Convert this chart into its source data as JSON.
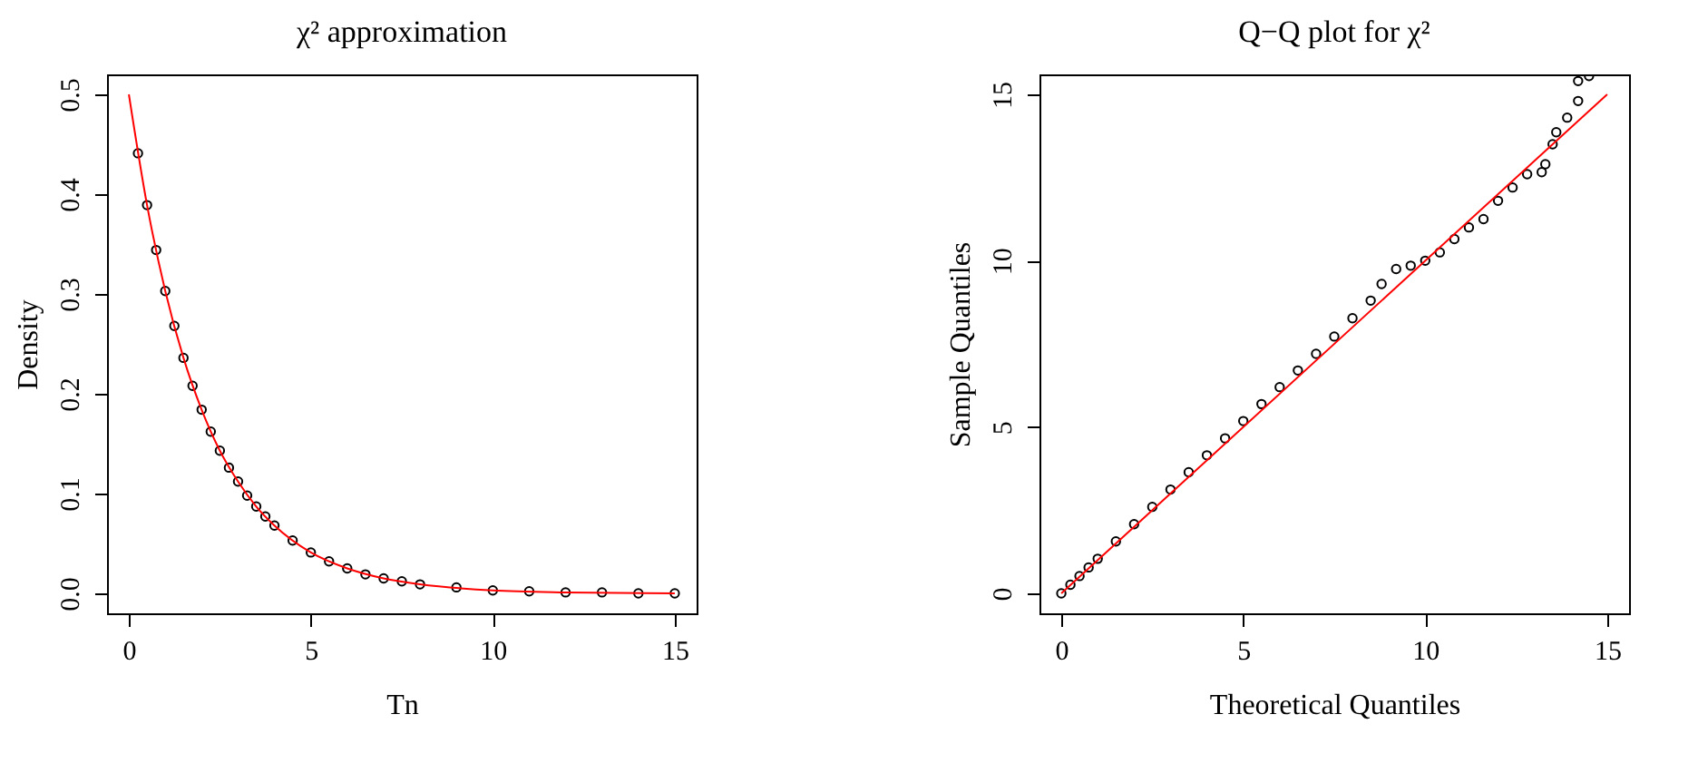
{
  "chart_data": [
    {
      "type": "scatter",
      "title": "χ² approximation",
      "xlabel": "Tn",
      "ylabel": "Density",
      "xlim": [
        -0.6,
        15.6
      ],
      "ylim": [
        -0.02,
        0.52
      ],
      "xticks": [
        0,
        5,
        10,
        15
      ],
      "yticks": [
        {
          "value": 0,
          "label": "0.0"
        },
        0.1,
        0.2,
        0.3,
        0.4,
        0.5
      ],
      "grid": false,
      "series": [
        {
          "marker": "circle",
          "color": "#000000",
          "x": [
            0.25,
            0.5,
            0.75,
            1,
            1.25,
            1.5,
            1.75,
            2,
            2.25,
            2.5,
            2.75,
            3,
            3.25,
            3.5,
            3.75,
            4,
            4.5,
            5,
            5.5,
            6,
            6.5,
            7,
            7.5,
            8,
            9,
            10,
            11,
            12,
            13,
            14,
            15
          ],
          "values": [
            0.441,
            0.389,
            0.344,
            0.303,
            0.268,
            0.236,
            0.208,
            0.184,
            0.162,
            0.143,
            0.126,
            0.112,
            0.098,
            0.087,
            0.077,
            0.068,
            0.053,
            0.041,
            0.032,
            0.025,
            0.019,
            0.015,
            0.012,
            0.009,
            0.006,
            0.003,
            0.002,
            0.001,
            0.001,
            0.0,
            0.0
          ]
        },
        {
          "type": "line",
          "marker": "none",
          "color": "#ff0000",
          "x": [
            0,
            0.5,
            1,
            1.5,
            2,
            2.5,
            3,
            3.5,
            4,
            5,
            6,
            7,
            8,
            10,
            12,
            15
          ],
          "values": [
            0.5,
            0.389,
            0.303,
            0.236,
            0.184,
            0.143,
            0.112,
            0.087,
            0.068,
            0.041,
            0.025,
            0.015,
            0.009,
            0.003,
            0.001,
            0.0
          ]
        }
      ]
    },
    {
      "type": "scatter",
      "title": "Q−Q plot for χ²",
      "xlabel": "Theoretical Quantiles",
      "ylabel": "Sample Quantiles",
      "xlim": [
        -0.6,
        15.6
      ],
      "ylim": [
        -0.6,
        15.6
      ],
      "xticks": [
        0,
        5,
        10,
        15
      ],
      "yticks": [
        0,
        5,
        10,
        15
      ],
      "grid": false,
      "series": [
        {
          "marker": "circle",
          "color": "#000000",
          "x": [
            0,
            0.25,
            0.5,
            0.75,
            1,
            1.5,
            2,
            2.5,
            3,
            3.5,
            4,
            4.5,
            5,
            5.5,
            6,
            6.5,
            7,
            7.5,
            8,
            8.5,
            8.8,
            9.2,
            9.6,
            10,
            10.4,
            10.8,
            11.2,
            11.6,
            12,
            12.4,
            12.8,
            13.2,
            13.3,
            13.5,
            13.6,
            13.9,
            14.2,
            14.2,
            14.5
          ],
          "values": [
            0,
            0.26,
            0.52,
            0.78,
            1.04,
            1.56,
            2.08,
            2.6,
            3.12,
            3.64,
            4.15,
            4.66,
            5.18,
            5.69,
            6.2,
            6.7,
            7.2,
            7.72,
            8.27,
            8.8,
            9.3,
            9.75,
            9.85,
            10,
            10.25,
            10.65,
            11.0,
            11.25,
            11.8,
            12.2,
            12.6,
            12.66,
            12.9,
            13.5,
            13.86,
            14.3,
            14.8,
            15.4,
            15.55
          ]
        },
        {
          "type": "line",
          "marker": "none",
          "color": "#ff0000",
          "x": [
            0,
            15
          ],
          "values": [
            0,
            15
          ]
        }
      ]
    }
  ]
}
